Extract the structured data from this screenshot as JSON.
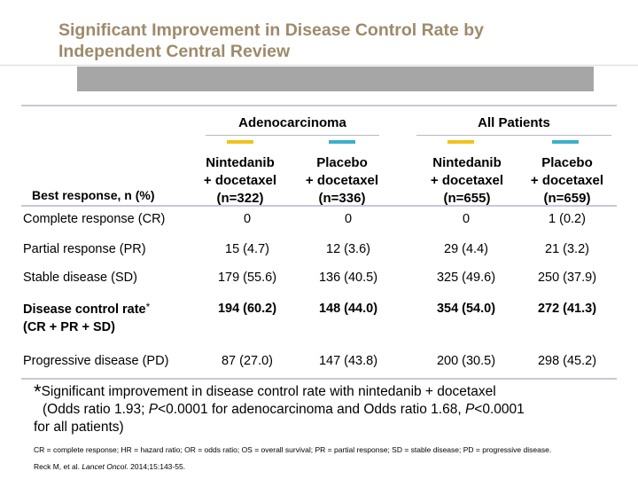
{
  "slide": {
    "title_line1": "Significant Improvement in Disease Control Rate by",
    "title_line2": "Independent Central Review"
  },
  "colors": {
    "nintedanib": "#f2c21b",
    "placebo": "#3bb0c9",
    "title": "#9e8a6a"
  },
  "table": {
    "group_headers": [
      "Adenocarcinoma",
      "All Patients"
    ],
    "row_header": "Best response, n (%)",
    "columns": [
      {
        "line1": "Nintedanib",
        "line2": "+  docetaxel",
        "line3": "(n=322)"
      },
      {
        "line1": "Placebo",
        "line2": "+  docetaxel",
        "line3": "(n=336)"
      },
      {
        "line1": "Nintedanib",
        "line2": "+  docetaxel",
        "line3": "(n=655)"
      },
      {
        "line1": "Placebo",
        "line2": "+  docetaxel",
        "line3": "(n=659)"
      }
    ],
    "rows": [
      {
        "label": "Complete response (CR)",
        "values": [
          "0",
          "0",
          "0",
          "1 (0.2)"
        ]
      },
      {
        "label": "Partial response (PR)",
        "values": [
          "15 (4.7)",
          "12 (3.6)",
          "29 (4.4)",
          "21 (3.2)"
        ]
      },
      {
        "label": "Stable disease (SD)",
        "values": [
          "179 (55.6)",
          "136 (40.5)",
          "325 (49.6)",
          "250 (37.9)"
        ]
      },
      {
        "label": "Disease control rate",
        "label_mark": "*",
        "label2": "(CR + PR + SD)",
        "values": [
          "194 (60.2)",
          "148 (44.0)",
          "354 (54.0)",
          "272 (41.3)"
        ]
      },
      {
        "label": "Progressive disease (PD)",
        "values": [
          "87 (27.0)",
          "147 (43.8)",
          "200 (30.5)",
          "298 (45.2)"
        ]
      }
    ]
  },
  "footnote": {
    "star": "*",
    "line1": "Significant improvement in disease control rate with nintedanib + docetaxel",
    "line2_a": "(Odds ratio 1.93; ",
    "p1": "P",
    "line2_b": "<0.0001 for adenocarcinoma and Odds ratio 1.68, ",
    "p2": "P",
    "line2_c": "<0.0001",
    "line3": "for all patients)"
  },
  "abbreviations": "CR = complete response; HR = hazard ratio; OR = odds ratio; OS = overall survival; PR = partial response; SD = stable disease; PD = progressive disease.",
  "reference": {
    "authors": "Reck M, et al. ",
    "journal": "Lancet Oncol",
    "details": ". 2014;15:143-55."
  }
}
